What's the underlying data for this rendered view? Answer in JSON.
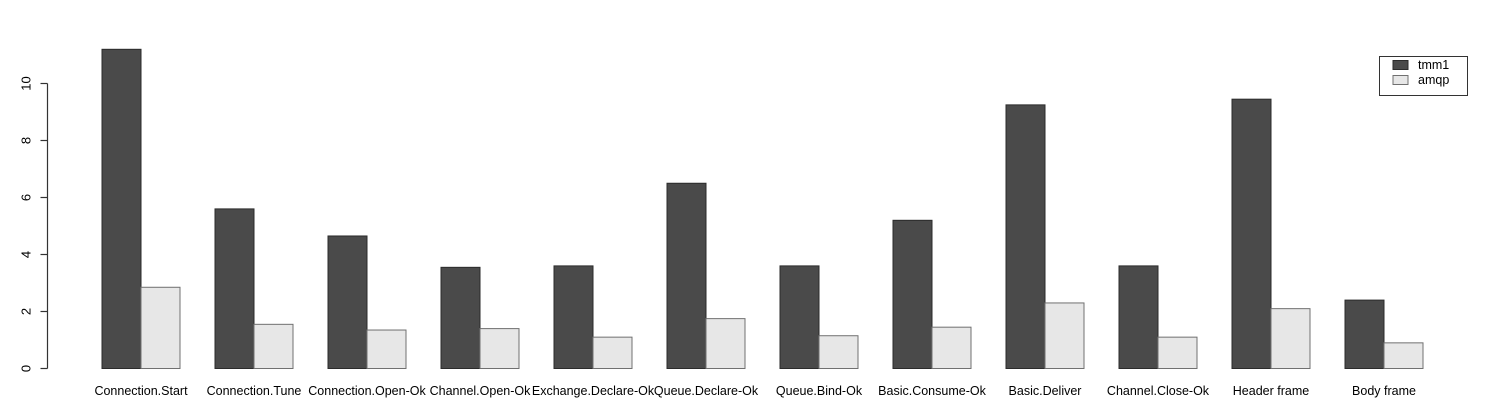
{
  "chart_data": {
    "type": "bar",
    "title": "",
    "xlabel": "",
    "ylabel": "",
    "categories": [
      "Connection.Start",
      "Connection.Tune",
      "Connection.Open-Ok",
      "Channel.Open-Ok",
      "Exchange.Declare-Ok",
      "Queue.Declare-Ok",
      "Queue.Bind-Ok",
      "Basic.Consume-Ok",
      "Basic.Deliver",
      "Channel.Close-Ok",
      "Header frame",
      "Body frame"
    ],
    "series": [
      {
        "name": "tmm1",
        "color": "#4a4a4a",
        "border": "#2b2b2b",
        "values": [
          11.2,
          5.6,
          4.65,
          3.55,
          3.6,
          6.5,
          3.6,
          5.2,
          9.25,
          3.6,
          9.45,
          2.4
        ]
      },
      {
        "name": "amqp",
        "color": "#e7e7e7",
        "border": "#707070",
        "values": [
          2.85,
          1.55,
          1.35,
          1.4,
          1.1,
          1.75,
          1.15,
          1.45,
          2.3,
          1.1,
          2.1,
          0.9
        ]
      }
    ],
    "ylim": [
      0,
      11.5
    ],
    "yticks": [
      0,
      2,
      4,
      6,
      8,
      10
    ],
    "grid": false,
    "legend_position": "top-right",
    "axis_color": "#333333",
    "background": "#ffffff"
  }
}
